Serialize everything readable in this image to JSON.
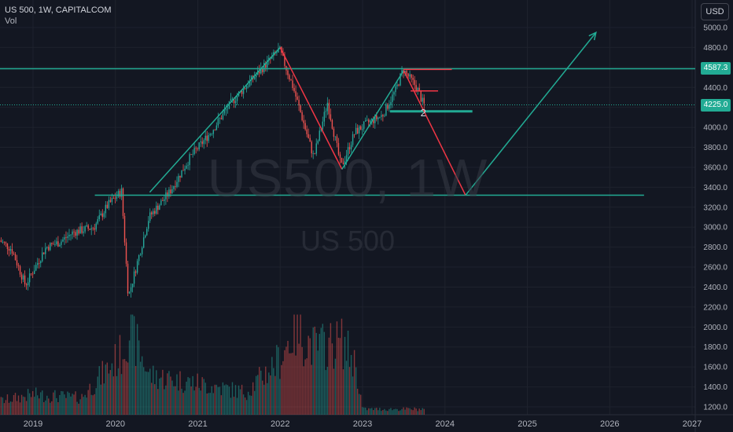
{
  "header": {
    "symbol_line": "US 500, 1W, CAPITALCOM",
    "indicator": "Vol",
    "currency": "USD"
  },
  "watermark": {
    "line1": "US500, 1W",
    "line2": "US 500"
  },
  "price_badges": {
    "resistance": "4587.3",
    "last": "4225.0"
  },
  "annotation": {
    "wave_label": "2"
  },
  "colors": {
    "background": "#131722",
    "up": "#26a69a",
    "down": "#ef5350",
    "drawing_green": "#22ab94",
    "drawing_red": "#f23645",
    "text": "#b2b5be"
  },
  "chart_data": {
    "type": "candlestick",
    "interval": "1W",
    "xlim": [
      "2018-08",
      "2027-03"
    ],
    "ylim": [
      1150,
      5150
    ],
    "scale": "linear",
    "x_ticks": [
      "2019",
      "2020",
      "2021",
      "2022",
      "2023",
      "2024",
      "2025",
      "2026",
      "2027"
    ],
    "y_ticks": [
      1200,
      1400,
      1600,
      1800,
      2000,
      2200,
      2400,
      2600,
      2800,
      3000,
      3200,
      3400,
      3600,
      3800,
      4000,
      4200,
      4400,
      4600,
      4800,
      5000
    ],
    "resistance_level": 4587.3,
    "last_price": 4225.0,
    "price_path": [
      {
        "date": "2018-08",
        "price": 2880
      },
      {
        "date": "2018-10",
        "price": 2780
      },
      {
        "date": "2018-12",
        "price": 2420
      },
      {
        "date": "2019-03",
        "price": 2800
      },
      {
        "date": "2019-05",
        "price": 2850
      },
      {
        "date": "2019-07",
        "price": 2950
      },
      {
        "date": "2019-10",
        "price": 3000
      },
      {
        "date": "2019-12",
        "price": 3220
      },
      {
        "date": "2020-02",
        "price": 3360
      },
      {
        "date": "2020-03",
        "price": 2300
      },
      {
        "date": "2020-06",
        "price": 3100
      },
      {
        "date": "2020-09",
        "price": 3350
      },
      {
        "date": "2020-12",
        "price": 3700
      },
      {
        "date": "2021-03",
        "price": 3950
      },
      {
        "date": "2021-06",
        "price": 4250
      },
      {
        "date": "2021-09",
        "price": 4480
      },
      {
        "date": "2022-01",
        "price": 4780
      },
      {
        "date": "2022-03",
        "price": 4400
      },
      {
        "date": "2022-06",
        "price": 3700
      },
      {
        "date": "2022-08",
        "price": 4250
      },
      {
        "date": "2022-10",
        "price": 3600
      },
      {
        "date": "2022-12",
        "price": 3950
      },
      {
        "date": "2023-02",
        "price": 4050
      },
      {
        "date": "2023-04",
        "price": 4120
      },
      {
        "date": "2023-06",
        "price": 4380
      },
      {
        "date": "2023-07",
        "price": 4580
      },
      {
        "date": "2023-09",
        "price": 4400
      },
      {
        "date": "2023-10",
        "price": 4225
      }
    ],
    "volume_path": [
      {
        "date": "2018-08",
        "level": 0.12
      },
      {
        "date": "2019-01",
        "level": 0.18
      },
      {
        "date": "2019-08",
        "level": 0.15
      },
      {
        "date": "2020-02",
        "level": 0.55
      },
      {
        "date": "2020-03",
        "level": 0.78
      },
      {
        "date": "2020-06",
        "level": 0.35
      },
      {
        "date": "2021-01",
        "level": 0.28
      },
      {
        "date": "2021-08",
        "level": 0.2
      },
      {
        "date": "2022-01",
        "level": 0.5
      },
      {
        "date": "2022-03",
        "level": 0.75
      },
      {
        "date": "2022-06",
        "level": 0.6
      },
      {
        "date": "2022-10",
        "level": 0.65
      },
      {
        "date": "2022-12",
        "level": 0.45
      },
      {
        "date": "2023-01",
        "level": 0.05
      },
      {
        "date": "2023-10",
        "level": 0.05
      }
    ],
    "drawings": {
      "lines": [
        {
          "kind": "horizontal",
          "color": "green",
          "price": 4587.3
        },
        {
          "kind": "horizontal",
          "color": "green",
          "from": "2019-10",
          "to": "2026-06",
          "price": 3320
        },
        {
          "kind": "horizontal",
          "color": "green",
          "from": "2023-05",
          "to": "2024-05",
          "price": 4160
        },
        {
          "kind": "segment",
          "color": "green",
          "from": [
            "2020-06",
            3350
          ],
          "to": [
            "2022-01",
            4800
          ]
        },
        {
          "kind": "segment",
          "color": "red",
          "from": [
            "2022-01",
            4800
          ],
          "to": [
            "2022-10",
            3580
          ]
        },
        {
          "kind": "segment",
          "color": "green",
          "from": [
            "2022-10",
            3580
          ],
          "to": [
            "2023-07",
            4570
          ]
        },
        {
          "kind": "segment",
          "color": "red",
          "from": [
            "2023-07",
            4570
          ],
          "to": [
            "2024-04",
            3320
          ]
        },
        {
          "kind": "segment",
          "color": "green",
          "from": [
            "2024-04",
            3320
          ],
          "to": [
            "2025-11",
            4950
          ]
        },
        {
          "kind": "segment",
          "color": "red",
          "from": [
            "2023-07",
            4580
          ],
          "to": [
            "2024-02",
            4580
          ]
        },
        {
          "kind": "segment",
          "color": "red",
          "from": [
            "2023-08",
            4365
          ],
          "to": [
            "2023-12",
            4365
          ]
        }
      ]
    }
  }
}
